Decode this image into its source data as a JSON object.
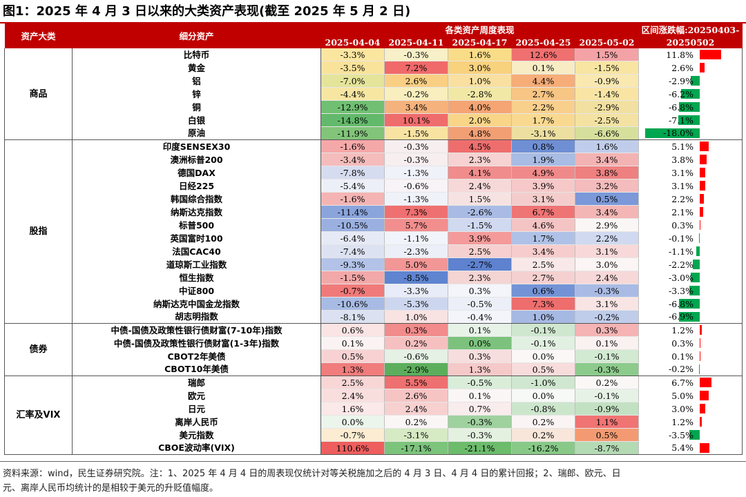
{
  "title": "图1：2025 年 4 月 3 日以来的大类资产表现(截至 2025 年 5 月 2 日)",
  "header": {
    "category": "资产大类",
    "asset": "细分资产",
    "weekly": "各类资产周度表现",
    "cumulative_line1": "区间涨跌幅:20250403-",
    "cumulative_line2": "20250502",
    "dates": [
      "2025-04-04",
      "2025-04-11",
      "2025-04-17",
      "2025-04-25",
      "2025-05-02"
    ]
  },
  "groups": [
    {
      "category": "商品",
      "rows": [
        {
          "name": "比特币",
          "values": [
            "-3.3%",
            "-0.3%",
            "1.6%",
            "12.6%",
            "1.5%"
          ],
          "colors": [
            "#fbe6a0",
            "#f7f0c8",
            "#f9dc88",
            "#f07070",
            "#f3a3a6"
          ],
          "cumulative": "11.8%",
          "cum_value": 11.8
        },
        {
          "name": "黄金",
          "values": [
            "-3.5%",
            "7.2%",
            "3.0%",
            "0.1%",
            "-1.5%"
          ],
          "colors": [
            "#f9e39a",
            "#f06a6a",
            "#f9d27e",
            "#f7ecc4",
            "#f8e5a2"
          ],
          "cumulative": "2.6%",
          "cum_value": 2.6
        },
        {
          "name": "铝",
          "values": [
            "-7.0%",
            "2.6%",
            "1.0%",
            "4.4%",
            "-0.9%"
          ],
          "colors": [
            "#e4e49a",
            "#f9cf84",
            "#f9e0a0",
            "#f6ad78",
            "#f9e8b0"
          ],
          "cumulative": "-2.9%",
          "cum_value": -2.9
        },
        {
          "name": "锌",
          "values": [
            "-4.4%",
            "-0.2%",
            "-2.8%",
            "2.7%",
            "-1.4%"
          ],
          "colors": [
            "#f6e6a2",
            "#f9eebe",
            "#f2e8a6",
            "#f7c584",
            "#f9e4a4"
          ],
          "cumulative": "-6.2%",
          "cum_value": -6.2
        },
        {
          "name": "铜",
          "values": [
            "-12.9%",
            "3.4%",
            "4.0%",
            "2.2%",
            "-2.9%"
          ],
          "colors": [
            "#70bf72",
            "#f5b27c",
            "#f5a473",
            "#f9cf8c",
            "#f2e0a0"
          ],
          "cumulative": "-6.8%",
          "cum_value": -6.8
        },
        {
          "name": "白银",
          "values": [
            "-14.8%",
            "10.1%",
            "2.0%",
            "1.7%",
            "-2.5%"
          ],
          "colors": [
            "#63b96b",
            "#ef6c6c",
            "#f9d588",
            "#f9d990",
            "#f3e2a2"
          ],
          "cumulative": "-7.1%",
          "cum_value": -7.1
        },
        {
          "name": "原油",
          "values": [
            "-11.9%",
            "-1.5%",
            "4.8%",
            "-3.1%",
            "-6.6%"
          ],
          "colors": [
            "#82c47a",
            "#f8e3a2",
            "#f29f74",
            "#ecdfa0",
            "#d7df9c"
          ],
          "cumulative": "-18.0%",
          "cum_value": -18.0
        }
      ]
    },
    {
      "category": "股指",
      "rows": [
        {
          "name": "印度SENSEX30",
          "values": [
            "-1.6%",
            "-0.3%",
            "4.5%",
            "0.8%",
            "1.6%"
          ],
          "colors": [
            "#f5a8a8",
            "#f7eef0",
            "#ee6e6e",
            "#6f8fd4",
            "#c0cdea"
          ],
          "cumulative": "5.1%",
          "cum_value": 5.1
        },
        {
          "name": "澳洲标普200",
          "values": [
            "-3.4%",
            "-0.3%",
            "2.3%",
            "1.9%",
            "3.4%"
          ],
          "colors": [
            "#f5bcbc",
            "#f7eef0",
            "#f6d2d2",
            "#a8bce4",
            "#f4b3b3"
          ],
          "cumulative": "3.8%",
          "cum_value": 3.8
        },
        {
          "name": "德国DAX",
          "values": [
            "-7.8%",
            "-1.3%",
            "4.1%",
            "4.9%",
            "3.8%"
          ],
          "colors": [
            "#d6dcef",
            "#f0f2fa",
            "#f08c8c",
            "#f08a8a",
            "#ef8080"
          ],
          "cumulative": "3.1%",
          "cum_value": 3.1
        },
        {
          "name": "日经225",
          "values": [
            "-5.4%",
            "-0.6%",
            "2.4%",
            "3.9%",
            "3.2%"
          ],
          "colors": [
            "#edeff8",
            "#f8f3f6",
            "#f7d8d8",
            "#f6c8c8",
            "#f4bcbc"
          ],
          "cumulative": "3.1%",
          "cum_value": 3.1
        },
        {
          "name": "韩国综合指数",
          "values": [
            "-1.6%",
            "-1.3%",
            "1.5%",
            "3.1%",
            "0.5%"
          ],
          "colors": [
            "#f5b4b4",
            "#f0f2fa",
            "#f7e2e2",
            "#f4cccc",
            "#7b98d8"
          ],
          "cumulative": "2.2%",
          "cum_value": 2.2
        },
        {
          "name": "纳斯达克指数",
          "values": [
            "-11.4%",
            "7.3%",
            "-2.6%",
            "6.7%",
            "3.4%"
          ],
          "colors": [
            "#8aa4dc",
            "#ef7070",
            "#a9bbe4",
            "#ef7474",
            "#f4b5b5"
          ],
          "cumulative": "2.1%",
          "cum_value": 2.1
        },
        {
          "name": "标普500",
          "values": [
            "-10.5%",
            "5.7%",
            "-1.5%",
            "4.6%",
            "2.9%"
          ],
          "colors": [
            "#9ab0e0",
            "#f28e8e",
            "#d0d9f0",
            "#f4c4c4",
            "#fbf6f6"
          ],
          "cumulative": "0.3%",
          "cum_value": 0.3
        },
        {
          "name": "英国富时100",
          "values": [
            "-6.4%",
            "-1.1%",
            "3.9%",
            "1.7%",
            "2.2%"
          ],
          "colors": [
            "#e6eaf6",
            "#f2f4fb",
            "#f49a9a",
            "#afc1e6",
            "#d0d9f0"
          ],
          "cumulative": "-0.1%",
          "cum_value": -0.1
        },
        {
          "name": "法国CAC40",
          "values": [
            "-7.4%",
            "-2.3%",
            "2.5%",
            "3.4%",
            "3.1%"
          ],
          "colors": [
            "#dde2f2",
            "#eceff8",
            "#f6d0d0",
            "#f6cccc",
            "#f8d8d8"
          ],
          "cumulative": "-1.1%",
          "cum_value": -1.1
        },
        {
          "name": "道琼斯工业指数",
          "values": [
            "-9.3%",
            "5.0%",
            "-2.7%",
            "2.5%",
            "3.0%"
          ],
          "colors": [
            "#b3c3e8",
            "#f29696",
            "#5e82cf",
            "#f8e8e8",
            "#fbf5f5"
          ],
          "cumulative": "-2.2%",
          "cum_value": -2.2
        },
        {
          "name": "恒生指数",
          "values": [
            "-1.5%",
            "-8.5%",
            "2.3%",
            "2.7%",
            "2.4%"
          ],
          "colors": [
            "#f3a8a8",
            "#5f84d0",
            "#f5d4d4",
            "#f5d0d0",
            "#f6d8d8"
          ],
          "cumulative": "-3.0%",
          "cum_value": -3.0
        },
        {
          "name": "中证800",
          "values": [
            "-0.7%",
            "-3.3%",
            "0.3%",
            "0.6%",
            "-0.3%"
          ],
          "colors": [
            "#f07a7a",
            "#e8ecf8",
            "#f3f5fb",
            "#7393d6",
            "#a9bbe4"
          ],
          "cumulative": "-3.3%",
          "cum_value": -3.3
        },
        {
          "name": "纳斯达克中国金龙指数",
          "values": [
            "-10.6%",
            "-5.3%",
            "-0.5%",
            "7.3%",
            "3.1%"
          ],
          "colors": [
            "#a8bbe4",
            "#cdd6ef",
            "#eceff8",
            "#ee6e6e",
            "#f9e4e4"
          ],
          "cumulative": "-6.8%",
          "cum_value": -6.8
        },
        {
          "name": "胡志明指数",
          "values": [
            "-8.1%",
            "1.0%",
            "-0.4%",
            "1.0%",
            "-0.2%"
          ],
          "colors": [
            "#dbe1f1",
            "#f9e2e2",
            "#f4f5fb",
            "#a6b9e3",
            "#c0cdea"
          ],
          "cumulative": "-6.9%",
          "cum_value": -6.9
        }
      ]
    },
    {
      "category": "债券",
      "rows": [
        {
          "name": "中债-国债及政策性银行债财富(7-10年)指数",
          "values": [
            "0.6%",
            "0.3%",
            "0.1%",
            "-0.1%",
            "0.3%"
          ],
          "colors": [
            "#fbe4e4",
            "#f28b8b",
            "#e8f3e8",
            "#cfe7cf",
            "#f5b3b3"
          ],
          "cumulative": "1.2%",
          "cum_value": 1.2
        },
        {
          "name": "中债-国债及政策性银行债财富(1-3年)指数",
          "values": [
            "0.1%",
            "0.2%",
            "0.0%",
            "-0.1%",
            "0.1%"
          ],
          "colors": [
            "#fbf3f3",
            "#f6c0c0",
            "#7cc27c",
            "#e2f0e2",
            "#faf1f1"
          ],
          "cumulative": "0.3%",
          "cum_value": 0.3
        },
        {
          "name": "CBOT2年美债",
          "values": [
            "0.5%",
            "-0.6%",
            "0.3%",
            "0.0%",
            "-0.1%"
          ],
          "colors": [
            "#f8d2d2",
            "#e4f1e4",
            "#f7dede",
            "#fbf7f7",
            "#d2e9d2"
          ],
          "cumulative": "0.1%",
          "cum_value": 0.1
        },
        {
          "name": "CBOT10年美债",
          "values": [
            "1.3%",
            "-2.9%",
            "1.3%",
            "0.5%",
            "-0.3%"
          ],
          "colors": [
            "#f07c7c",
            "#5cae5c",
            "#f6c9c9",
            "#f8dcdc",
            "#8ccb8c"
          ],
          "cumulative": "-0.2%",
          "cum_value": -0.2
        }
      ]
    },
    {
      "category": "汇率及VIX",
      "rows": [
        {
          "name": "瑞郎",
          "values": [
            "2.5%",
            "5.5%",
            "-0.5%",
            "-1.0%",
            "0.2%"
          ],
          "colors": [
            "#f8d6d6",
            "#ef7070",
            "#d9edd9",
            "#cfe7cf",
            "#fbf7f7"
          ],
          "cumulative": "6.7%",
          "cum_value": 6.7
        },
        {
          "name": "欧元",
          "values": [
            "2.4%",
            "2.6%",
            "0.1%",
            "0.0%",
            "-0.1%"
          ],
          "colors": [
            "#f9dede",
            "#f7c4c4",
            "#fbf6f6",
            "#f6f9f6",
            "#e6f2e6"
          ],
          "cumulative": "5.0%",
          "cum_value": 5.0
        },
        {
          "name": "日元",
          "values": [
            "1.6%",
            "2.4%",
            "0.7%",
            "-0.8%",
            "-0.9%"
          ],
          "colors": [
            "#fbe8e8",
            "#f7d0d0",
            "#f9ecec",
            "#cce6cc",
            "#c2e1c2"
          ],
          "cumulative": "3.0%",
          "cum_value": 3.0
        },
        {
          "name": "离岸人民币",
          "values": [
            "0.0%",
            "0.2%",
            "-0.3%",
            "0.2%",
            "1.1%"
          ],
          "colors": [
            "#ebf5eb",
            "#fbf6f6",
            "#9fd19f",
            "#fbf4f4",
            "#f07474"
          ],
          "cumulative": "1.2%",
          "cum_value": 1.2
        },
        {
          "name": "美元指数",
          "values": [
            "-0.7%",
            "-3.1%",
            "-0.3%",
            "0.2%",
            "0.5%"
          ],
          "colors": [
            "#fbecd2",
            "#d6eac4",
            "#e4f1e0",
            "#f8e6da",
            "#f49a72"
          ],
          "cumulative": "-3.5%",
          "cum_value": -3.5
        },
        {
          "name": "CBOE波动率(VIX)",
          "values": [
            "110.6%",
            "-17.1%",
            "-21.1%",
            "-16.2%",
            "-8.7%"
          ],
          "colors": [
            "#ee5e5e",
            "#7cc47c",
            "#6cbc6c",
            "#88c988",
            "#b4dab4"
          ],
          "cumulative": "5.4%",
          "cum_value": 5.4
        }
      ]
    }
  ],
  "footnote_line1": "资料来源：wind，民生证券研究院。注：1、2025 年 4 月 4 日的周表现仅统计对等关税施加之后的 4 月 3 日、4 月 4 日的累计回报；2、瑞郎、欧元、日",
  "footnote_line2": "元、离岸人民币均统计的是相较于美元的升贬值幅度。",
  "colors": {
    "header_red": "#c00000",
    "bar_positive": "#ff0000",
    "bar_negative": "#00a650"
  }
}
